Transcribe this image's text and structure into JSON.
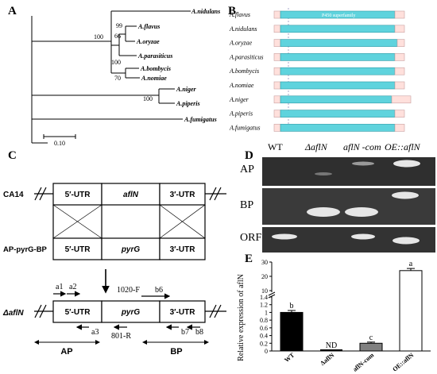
{
  "panels": {
    "A": "A",
    "B": "B",
    "C": "C",
    "D": "D",
    "E": "E"
  },
  "tree": {
    "taxa": [
      "A.nidulans",
      "A.flavus",
      "A.oryzae",
      "A.parasiticus",
      "A.bombycis",
      "A.nomiae",
      "A.niger",
      "A.piperis",
      "A.fumigatus"
    ],
    "bootstrap": [
      "100",
      "99",
      "66",
      "100",
      "70",
      "100"
    ],
    "scale_label": "0.10"
  },
  "domains": {
    "species": [
      "A.flavus",
      "A.nidulans",
      "A.oryzae",
      "A.parasiticus",
      "A.bombycis",
      "A.nomiae",
      "A.niger",
      "A.piperis",
      "A.fumigatus"
    ],
    "domain_label": "P450 superfamily"
  },
  "construct": {
    "rows": {
      "ca14": "CA14",
      "apbp": "AP-pyrG-BP",
      "delta": "ΔaflN"
    },
    "utr5": "5′-UTR",
    "utr3": "3′-UTR",
    "gene_afln": "aflN",
    "gene_pyrg": "pyrG",
    "primers": {
      "a1": "a1",
      "a2": "a2",
      "a3": "a3",
      "f1020": "1020-F",
      "b6": "b6",
      "r801": "801-R",
      "b7": "b7",
      "b8": "b8"
    },
    "regions": {
      "ap": "AP",
      "bp": "BP"
    }
  },
  "gel": {
    "lanes": [
      "WT",
      "ΔaflN",
      "aflN -com",
      "OE::aflN"
    ],
    "rows": [
      "AP",
      "BP",
      "ORF"
    ]
  },
  "chart_data": {
    "type": "bar",
    "categories": [
      "WT",
      "ΔaflN",
      "aflN-com",
      "OE::aflN"
    ],
    "values": [
      1.0,
      0,
      0.2,
      24
    ],
    "errors": [
      0.05,
      0,
      0.03,
      1.5
    ],
    "ylabel": "Relative expression of aflN",
    "yticks_lower": [
      "0",
      "0.2",
      "0.4",
      "0.6",
      "0.8",
      "1",
      "1.2",
      "1.4"
    ],
    "yticks_upper": [
      "10",
      "20",
      "30"
    ],
    "annotations": [
      "b",
      "ND",
      "c",
      "a"
    ],
    "bar_colors": [
      "#000000",
      "#ffffff",
      "#808080",
      "#ffffff"
    ]
  }
}
